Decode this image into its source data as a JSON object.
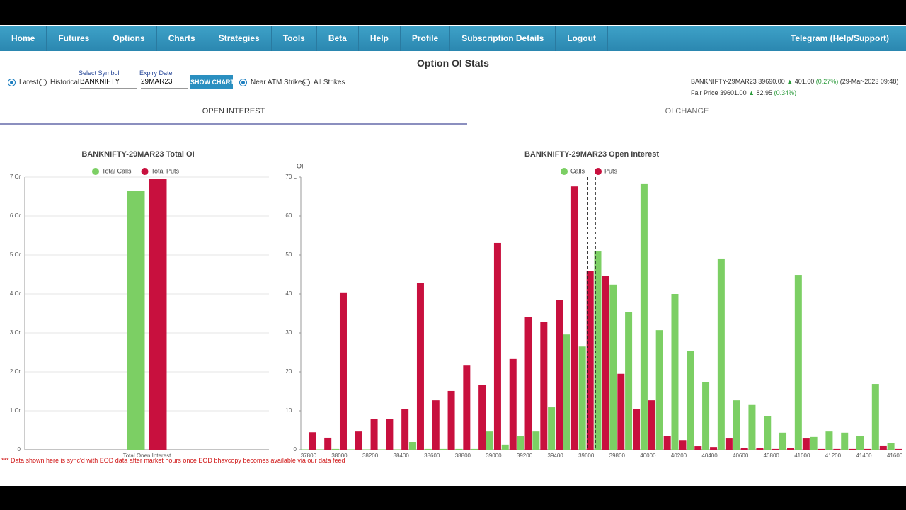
{
  "nav": {
    "items": [
      "Home",
      "Futures",
      "Options",
      "Charts",
      "Strategies",
      "Tools",
      "Beta",
      "Help",
      "Profile",
      "Subscription Details",
      "Logout"
    ],
    "right": "Telegram (Help/Support)"
  },
  "header": {
    "title": "Option OI Stats"
  },
  "controls": {
    "latest": "Latest",
    "historical": "Historical",
    "symbol_label": "Select Symbol",
    "symbol": "BANKNIFTY",
    "expiry_label": "Expiry Date",
    "expiry": "29MAR23",
    "button": "SHOW CHART",
    "near_atm": "Near ATM Strikes",
    "all_strikes": "All Strikes"
  },
  "quote": {
    "symbol": "BANKNIFTY-29MAR23",
    "price": "39690.00",
    "change": "401.60",
    "change_pct": "(0.27%)",
    "time": "(29-Mar-2023 09:48)",
    "fair_label": "Fair Price",
    "fair_price": "39601.00",
    "fair_change": "82.95",
    "fair_pct": "(0.34%)"
  },
  "tabs": [
    "OPEN INTEREST",
    "OI CHANGE"
  ],
  "note": "*** Data shown here is sync'd with EOD data after market hours once EOD bhavcopy becomes available via our data feed",
  "chart_data": [
    {
      "type": "bar",
      "title": "BANKNIFTY-29MAR23 Total OI",
      "categories": [
        "Total Open Interest"
      ],
      "series": [
        {
          "name": "Total Calls",
          "color": "#7ccf64",
          "values": [
            6.64
          ]
        },
        {
          "name": "Total Puts",
          "color": "#c8103e",
          "values": [
            6.95
          ]
        }
      ],
      "ylim": [
        0,
        7
      ],
      "yticks": [
        0,
        {
          "value": 1,
          "label": "1 Cr"
        },
        {
          "value": 2,
          "label": "2 Cr"
        },
        {
          "value": 3,
          "label": "3 Cr"
        },
        {
          "value": 4,
          "label": "4 Cr"
        },
        {
          "value": 5,
          "label": "5 Cr"
        },
        {
          "value": 6,
          "label": "6 Cr"
        },
        {
          "value": 7,
          "label": "7 Cr"
        }
      ],
      "grid": true,
      "legend": "top"
    },
    {
      "type": "bar",
      "title": "BANKNIFTY-29MAR23 Open Interest",
      "y_label": "OI",
      "categories": [
        "37800",
        null,
        "38000",
        null,
        "38200",
        null,
        "38400",
        null,
        "38600",
        null,
        "38800",
        null,
        "39000",
        null,
        "39200",
        null,
        "39400",
        null,
        "39600",
        null,
        "39800",
        null,
        "40000",
        null,
        "40200",
        null,
        "40400",
        null,
        "40600",
        null,
        "40800",
        null,
        "41000",
        null,
        "41200",
        null,
        "41400",
        null,
        "41600"
      ],
      "series": [
        {
          "name": "Calls",
          "color": "#7ccf64",
          "values": [
            0.1,
            0.1,
            0.2,
            0.1,
            0.1,
            0.1,
            0.1,
            2.0,
            0.2,
            0.2,
            0.2,
            0.2,
            4.7,
            1.3,
            3.6,
            4.7,
            10.9,
            29.6,
            26.5,
            50.9,
            42.4,
            35.3,
            68.2,
            30.7,
            40.0,
            25.3,
            17.3,
            49.1,
            12.7,
            11.5,
            8.7,
            4.4,
            44.9,
            3.3,
            4.7,
            4.4,
            3.6,
            16.9,
            1.8
          ]
        },
        {
          "name": "Puts",
          "color": "#c8103e",
          "values": [
            4.5,
            3.1,
            40.4,
            4.7,
            8.0,
            8.0,
            10.4,
            42.9,
            12.7,
            15.1,
            21.6,
            16.7,
            53.1,
            23.3,
            34.0,
            32.9,
            38.4,
            67.6,
            46.0,
            44.7,
            19.5,
            10.4,
            12.7,
            3.5,
            2.5,
            0.9,
            0.7,
            2.9,
            0.4,
            0.4,
            0.2,
            0.4,
            2.9,
            0.2,
            0.2,
            0.2,
            0.2,
            1.1,
            0.2
          ]
        }
      ],
      "ylim": [
        0,
        70
      ],
      "yticks": [
        0,
        {
          "value": 10,
          "label": "10 L"
        },
        {
          "value": 20,
          "label": "20 L"
        },
        {
          "value": 30,
          "label": "30 L"
        },
        {
          "value": 40,
          "label": "40 L"
        },
        {
          "value": 50,
          "label": "50 L"
        },
        {
          "value": 60,
          "label": "60 L"
        },
        {
          "value": 70,
          "label": "70 L"
        }
      ],
      "grid": false,
      "legend": "top"
    }
  ]
}
